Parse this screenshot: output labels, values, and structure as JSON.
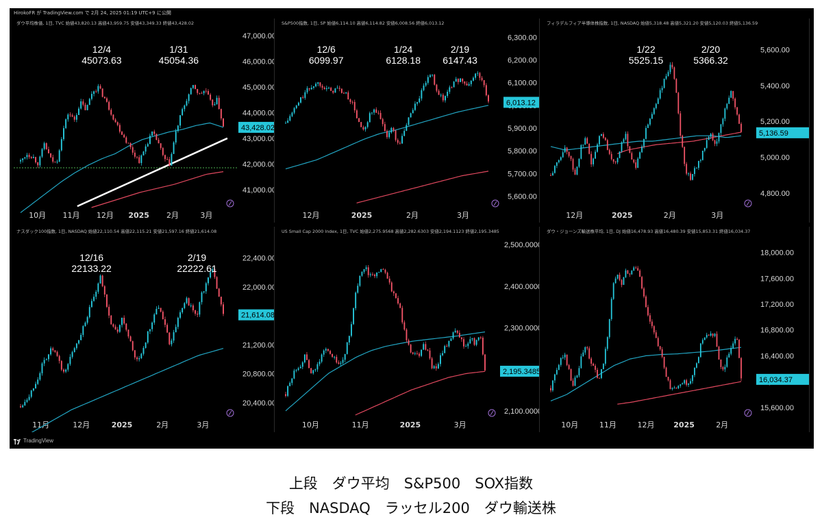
{
  "window": {
    "header": "HirokoFR が TradingView.com で 2月 24, 2025 01:19 UTC+9 に公開",
    "footer_brand": "TradingView"
  },
  "caption": {
    "line1": "上段　ダウ平均　S&P500　SOX指数",
    "line2": "下段　NASDAQ　ラッセル200　ダウ輸送株"
  },
  "colors": {
    "background": "#000000",
    "up_candle": "#26c6da",
    "down_candle": "#ef5366",
    "ma_short": "#22a6c4",
    "ma_long": "#e0485e",
    "price_tag": "#26c6da",
    "text": "#ffffff"
  },
  "chart_data": [
    {
      "type": "candlestick",
      "legend": "ダウ平均株価, 1日, TVC  始値43,820.13 高値43,959.75 安値43,349.33 終値43,428.02",
      "ylim": [
        40300,
        47300
      ],
      "yticks": [
        "47,000.00",
        "46,000.00",
        "45,000.00",
        "44,000.00",
        "43,000.00",
        "42,000.00",
        "41,000.00"
      ],
      "xticks": [
        "10月",
        "11月",
        "12月",
        "2025",
        "2月",
        "3月"
      ],
      "last_price_label": "43,428.02",
      "last_price": 43428,
      "annotations": [
        {
          "label": "12/4",
          "value": "45073.63"
        },
        {
          "label": "1/31",
          "value": "45054.36"
        }
      ],
      "shape": [
        42100,
        42400,
        42300,
        42000,
        42800,
        42200,
        42000,
        43200,
        44000,
        43700,
        44400,
        44100,
        44800,
        45000,
        44600,
        44100,
        43600,
        43200,
        42800,
        42400,
        42100,
        42700,
        43200,
        42900,
        42200,
        42000,
        43200,
        44000,
        44600,
        45050,
        44700,
        44900,
        44300,
        44500,
        43428
      ],
      "ma_short": [
        40100,
        40500,
        40900,
        41300,
        41650,
        41950,
        42200,
        42400,
        42700,
        42950,
        43100,
        43250,
        43350,
        43500,
        43600,
        43428
      ],
      "ma_long": [
        40300,
        40500,
        40700,
        40900,
        41050,
        41200,
        41400,
        41600,
        41700
      ],
      "trendline": [
        [
          0.28,
          40350
        ],
        [
          1.02,
          43000
        ]
      ],
      "dotted_level": 41850
    },
    {
      "type": "candlestick",
      "legend": "S&P500指数, 1日, SP  始値6,114.10 高値6,114.82 安値6,008.56 終値6,013.12",
      "ylim": [
        5550,
        6340
      ],
      "yticks": [
        "6,300.00",
        "6,200.00",
        "6,100.00",
        "6,000.00",
        "5,900.00",
        "5,800.00",
        "5,700.00",
        "5,600.00"
      ],
      "xticks": [
        "12月",
        "2025",
        "2月",
        "3月"
      ],
      "last_price_label": "6,013.12",
      "last_price": 6013.12,
      "annotations": [
        {
          "label": "12/6",
          "value": "6099.97"
        },
        {
          "label": "1/24",
          "value": "6128.18"
        },
        {
          "label": "2/19",
          "value": "6147.43"
        }
      ],
      "shape": [
        5920,
        5960,
        6000,
        6040,
        6070,
        6090,
        6099,
        6080,
        6060,
        6075,
        6060,
        6040,
        6000,
        5920,
        5880,
        5960,
        5980,
        5930,
        5870,
        5900,
        5820,
        5880,
        5960,
        6000,
        6050,
        6110,
        6128,
        6060,
        6020,
        6080,
        6100,
        6120,
        6080,
        6110,
        6147,
        6100,
        6013
      ],
      "ma_short": [
        5720,
        5740,
        5760,
        5790,
        5820,
        5850,
        5875,
        5890,
        5910,
        5930,
        5950,
        5970,
        5985,
        6000
      ],
      "ma_long": [
        5570,
        5600,
        5630,
        5660,
        5690,
        5710
      ]
    },
    {
      "type": "candlestick",
      "legend": "フィラデルフィア半導体株指数, 1日, NASDAQ  始値5,318.48 高値5,321.20 安値5,120.03 終値5,136.59",
      "ylim": [
        4720,
        5720
      ],
      "yticks": [
        "5,600.00",
        "5,400.00",
        "5,200.00",
        "5,000.00",
        "4,800.00"
      ],
      "xticks": [
        "12月",
        "2025",
        "2月",
        "3月"
      ],
      "last_price_label": "5,136.59",
      "last_price": 5136.59,
      "annotations": [
        {
          "label": "1/22",
          "value": "5525.15"
        },
        {
          "label": "2/20",
          "value": "5366.32"
        }
      ],
      "shape": [
        4900,
        4950,
        5010,
        5060,
        4980,
        4900,
        5050,
        5100,
        4960,
        5030,
        5150,
        5080,
        5000,
        4980,
        5060,
        5120,
        5000,
        4950,
        5040,
        5150,
        5230,
        5300,
        5380,
        5450,
        5525,
        5380,
        5100,
        4920,
        4880,
        4950,
        5000,
        5080,
        5120,
        5060,
        5180,
        5300,
        5366,
        5260,
        5136
      ],
      "ma_short": [
        5060,
        5040,
        5050,
        5060,
        5070,
        5080,
        5090,
        5090,
        5100,
        5110,
        5120,
        5120,
        5110,
        5120
      ],
      "ma_long": [
        5020,
        5040,
        5050,
        5060,
        5070,
        5075,
        5080,
        5085,
        5090,
        5100,
        5110,
        5120,
        5130,
        5140
      ]
    },
    {
      "type": "candlestick",
      "legend": "ナスダック100指数, 1日, NASDAQ  始値22,110.54 高値22,115.21 安値21,597.16 終値21,614.08",
      "ylim": [
        20200,
        22700
      ],
      "yticks": [
        "22,400.00",
        "22,000.00",
        "21,600.00",
        "21,200.00",
        "20,800.00",
        "20,400.00"
      ],
      "xticks": [
        "11月",
        "12月",
        "2025",
        "2月",
        "3月"
      ],
      "last_price_label": "21,614.08",
      "last_price": 21614.08,
      "annotations": [
        {
          "label": "12/16",
          "value": "22133.22"
        },
        {
          "label": "2/19",
          "value": "22222.61"
        }
      ],
      "shape": [
        20350,
        20450,
        20550,
        20700,
        20900,
        21050,
        21150,
        21000,
        20800,
        20950,
        21150,
        21300,
        21500,
        21700,
        21900,
        22133,
        21800,
        21500,
        21350,
        21550,
        21400,
        21100,
        20950,
        21150,
        21400,
        21600,
        21750,
        21500,
        21200,
        21450,
        21650,
        21850,
        21700,
        21600,
        21900,
        22100,
        22222,
        21950,
        21614
      ],
      "ma_short": [
        19900,
        20100,
        20300,
        20450,
        20600,
        20750,
        20900,
        21050,
        21150
      ],
      "ma_long": []
    },
    {
      "type": "candlestick",
      "legend": "US Small Cap 2000 Index, 1日, TVC  始値2,275.9568 高値2,282.6303 安値2,194.1123 終値2,195.3485",
      "ylim": [
        2085,
        2520
      ],
      "yticks": [
        "2,500.0000",
        "2,400.0000",
        "2,300.0000",
        "2,200.0000",
        "2,100.0000"
      ],
      "xticks": [
        "10月",
        "11月",
        "2025",
        "3月"
      ],
      "last_price_label": "2,195.3485",
      "last_price": 2195.3485,
      "annotations": [],
      "shape": [
        2140,
        2170,
        2200,
        2210,
        2230,
        2200,
        2190,
        2220,
        2240,
        2250,
        2230,
        2210,
        2220,
        2260,
        2320,
        2400,
        2430,
        2440,
        2420,
        2430,
        2445,
        2430,
        2400,
        2380,
        2350,
        2290,
        2250,
        2240,
        2230,
        2260,
        2240,
        2200,
        2210,
        2240,
        2260,
        2280,
        2290,
        2270,
        2250,
        2280,
        2260,
        2280,
        2195
      ],
      "ma_short": [
        2100,
        2130,
        2160,
        2190,
        2210,
        2230,
        2245,
        2255,
        2262,
        2268,
        2272,
        2276,
        2280,
        2285,
        2290
      ],
      "ma_long": [
        2090,
        2110,
        2130,
        2150,
        2165,
        2180,
        2190,
        2195
      ]
    },
    {
      "type": "candlestick",
      "legend": "ダウ・ジョーンズ輸送株平均, 1日, DJ  始値16,478.93 高値16,480.39 安値15,853.31 終値16,034.37",
      "ylim": [
        15450,
        18250
      ],
      "yticks": [
        "18,000.00",
        "17,600.00",
        "17,200.00",
        "16,800.00",
        "16,400.00",
        "16,000.00",
        "15,600.00"
      ],
      "xticks": [
        "10月",
        "11月",
        "12月",
        "2025",
        "2月"
      ],
      "last_price_label": "16,034.37",
      "last_price": 16034.37,
      "annotations": [],
      "shape": [
        15900,
        16100,
        16300,
        16450,
        16200,
        15950,
        16100,
        16400,
        16550,
        16300,
        16150,
        16050,
        16300,
        16800,
        17500,
        17650,
        17500,
        17700,
        17650,
        17800,
        17700,
        17300,
        17000,
        16800,
        16600,
        16400,
        16100,
        15900,
        15950,
        15900,
        16050,
        15950,
        16100,
        16300,
        16600,
        16750,
        16700,
        16750,
        16300,
        16150,
        16400,
        16600,
        16700,
        16034
      ],
      "ma_short": [
        15700,
        15800,
        15950,
        16100,
        16250,
        16350,
        16400,
        16420,
        16430,
        16450,
        16470,
        16500,
        16530
      ],
      "ma_long": [
        15650,
        15680,
        15720,
        15760,
        15800,
        15840,
        15880,
        15920,
        15960,
        16000
      ]
    }
  ]
}
